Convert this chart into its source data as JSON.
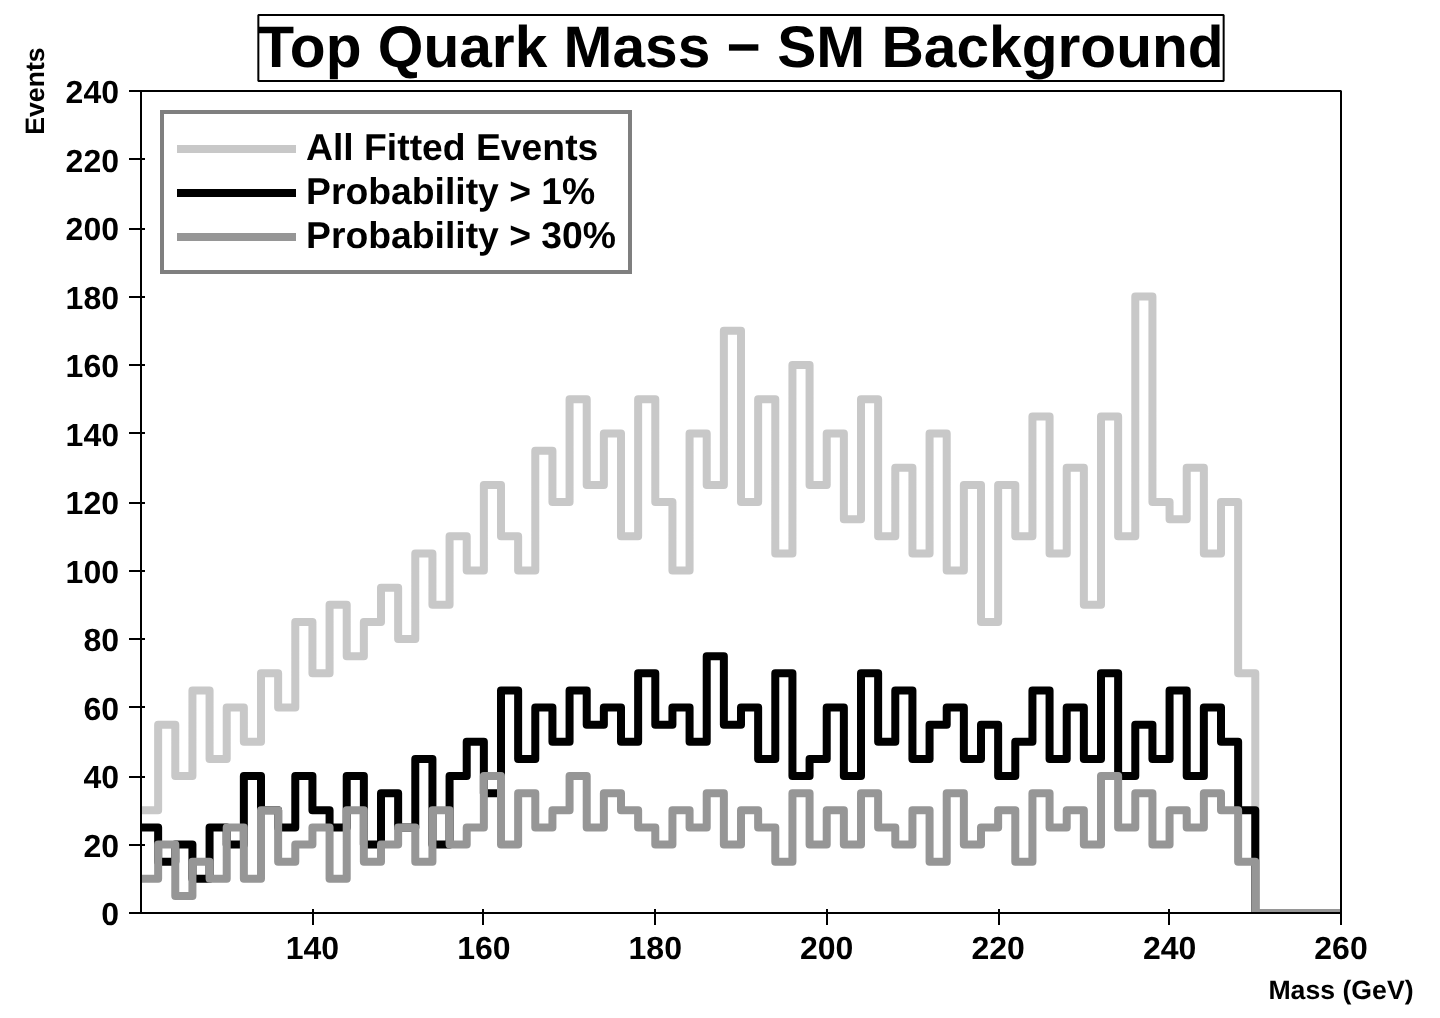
{
  "chart_data": {
    "type": "step",
    "title": "Top Quark Mass − SM Background",
    "xlabel": "Mass (GeV)",
    "ylabel": "Events",
    "x": [
      120,
      122,
      124,
      126,
      128,
      130,
      132,
      134,
      136,
      138,
      140,
      142,
      144,
      146,
      148,
      150,
      152,
      154,
      156,
      158,
      160,
      162,
      164,
      166,
      168,
      170,
      172,
      174,
      176,
      178,
      180,
      182,
      184,
      186,
      188,
      190,
      192,
      194,
      196,
      198,
      200,
      202,
      204,
      206,
      208,
      210,
      212,
      214,
      216,
      218,
      220,
      222,
      224,
      226,
      228,
      230,
      232,
      234,
      236,
      238,
      240,
      242,
      244,
      246,
      248,
      250,
      260
    ],
    "series": [
      {
        "name": "All Fitted Events",
        "color": "#c8c8c8",
        "values": [
          30,
          55,
          40,
          65,
          45,
          60,
          50,
          70,
          60,
          85,
          70,
          90,
          75,
          85,
          95,
          80,
          105,
          90,
          110,
          100,
          125,
          110,
          100,
          135,
          120,
          150,
          125,
          140,
          110,
          150,
          120,
          100,
          140,
          125,
          170,
          120,
          150,
          105,
          160,
          125,
          140,
          115,
          150,
          110,
          130,
          105,
          140,
          100,
          125,
          85,
          125,
          110,
          145,
          105,
          130,
          90,
          145,
          110,
          180,
          120,
          115,
          130,
          105,
          120,
          70,
          0,
          0
        ]
      },
      {
        "name": "Probability > 1%",
        "color": "#000000",
        "values": [
          25,
          15,
          20,
          10,
          25,
          20,
          40,
          30,
          25,
          40,
          30,
          25,
          40,
          20,
          35,
          25,
          45,
          20,
          40,
          50,
          35,
          65,
          45,
          60,
          50,
          65,
          55,
          60,
          50,
          70,
          55,
          60,
          50,
          75,
          55,
          60,
          45,
          70,
          40,
          45,
          60,
          40,
          70,
          50,
          65,
          45,
          55,
          60,
          45,
          55,
          40,
          50,
          65,
          45,
          60,
          45,
          70,
          40,
          55,
          45,
          65,
          40,
          60,
          50,
          30,
          0,
          0
        ]
      },
      {
        "name": "Probability > 30%",
        "color": "#969696",
        "values": [
          10,
          20,
          5,
          15,
          10,
          25,
          10,
          30,
          15,
          20,
          25,
          10,
          30,
          15,
          20,
          25,
          15,
          30,
          20,
          25,
          40,
          20,
          35,
          25,
          30,
          40,
          25,
          35,
          30,
          25,
          20,
          30,
          25,
          35,
          20,
          30,
          25,
          15,
          35,
          20,
          30,
          20,
          35,
          25,
          20,
          30,
          15,
          35,
          20,
          25,
          30,
          15,
          35,
          25,
          30,
          20,
          40,
          25,
          35,
          20,
          30,
          25,
          35,
          30,
          15,
          0,
          0
        ]
      }
    ],
    "xlim": [
      120,
      260
    ],
    "ylim": [
      0,
      240
    ],
    "xticks": [
      140,
      160,
      180,
      200,
      220,
      240,
      260
    ],
    "yticks": [
      0,
      20,
      40,
      60,
      80,
      100,
      120,
      140,
      160,
      180,
      200,
      220,
      240
    ],
    "legend": "top left",
    "grid": false
  }
}
